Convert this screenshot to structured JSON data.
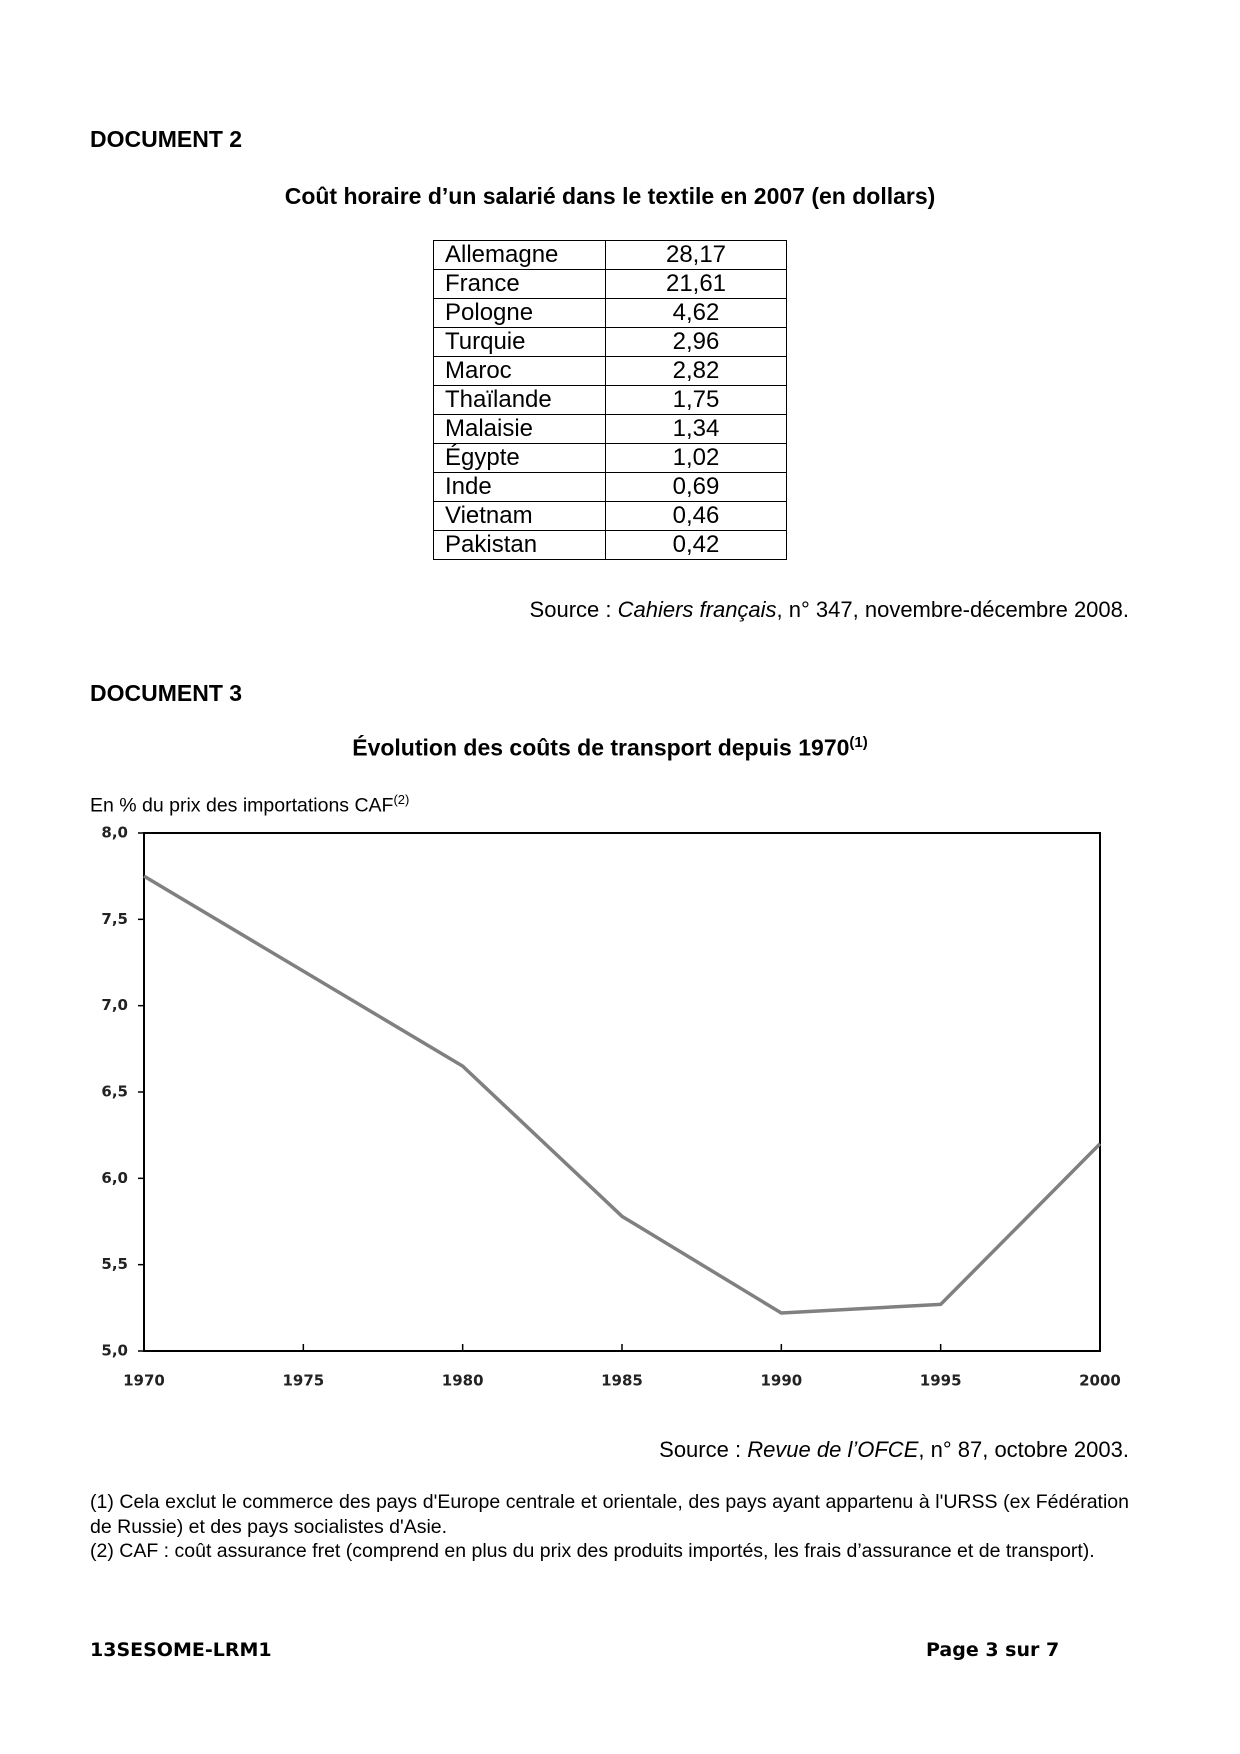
{
  "document2": {
    "heading": "DOCUMENT 2",
    "title": "Coût horaire d’un salarié dans le textile en 2007 (en dollars)",
    "table": {
      "rows": [
        [
          "Allemagne",
          "28,17"
        ],
        [
          "France",
          "21,61"
        ],
        [
          "Pologne",
          "4,62"
        ],
        [
          "Turquie",
          "2,96"
        ],
        [
          "Maroc",
          "2,82"
        ],
        [
          "Thaïlande",
          "1,75"
        ],
        [
          "Malaisie",
          "1,34"
        ],
        [
          "Égypte",
          "1,02"
        ],
        [
          "Inde",
          "0,69"
        ],
        [
          "Vietnam",
          "0,46"
        ],
        [
          "Pakistan",
          "0,42"
        ]
      ]
    },
    "source": {
      "prefix": "Source : ",
      "work": "Cahiers français",
      "rest": ", n° 347, novembre-décembre 2008."
    }
  },
  "document3": {
    "heading": "DOCUMENT 3",
    "source": {
      "prefix": "Source : ",
      "work": "Revue de l’OFCE",
      "rest": ", n° 87, octobre 2003."
    },
    "notes": [
      "(1) Cela exclut le commerce des pays d'Europe centrale et orientale, des pays ayant appartenu à l'URSS (ex Fédération de Russie) et des pays socialistes d'Asie.",
      "(2) CAF : coût assurance fret (comprend en plus du prix des produits importés, les frais d’assurance et de transport)."
    ]
  },
  "chart_data": {
    "type": "line",
    "title": "Évolution des coûts de transport depuis 1970",
    "title_note": "(1)",
    "y_label": "En % du prix des importations CAF",
    "y_label_note": "(2)",
    "x": [
      1970,
      1975,
      1980,
      1985,
      1990,
      1995,
      2000
    ],
    "values": [
      7.75,
      7.2,
      6.65,
      5.78,
      5.22,
      5.27,
      6.2
    ],
    "color": "#808080",
    "xlim": [
      1970,
      2000
    ],
    "xticks": [
      1970,
      1975,
      1980,
      1985,
      1990,
      1995,
      2000
    ],
    "ylim": [
      5,
      8
    ],
    "yticks": [
      {
        "value": 5,
        "label": "5,0"
      },
      {
        "value": 5.5,
        "label": "5,5"
      },
      {
        "value": 6,
        "label": "6,0"
      },
      {
        "value": 6.5,
        "label": "6,5"
      },
      {
        "value": 7,
        "label": "7,0"
      },
      {
        "value": 7.5,
        "label": "7,5"
      },
      {
        "value": 8,
        "label": "8,0"
      }
    ],
    "grid": false
  },
  "footer": {
    "code": "13SESOME-LRM1",
    "page": "Page 3 sur 7"
  }
}
